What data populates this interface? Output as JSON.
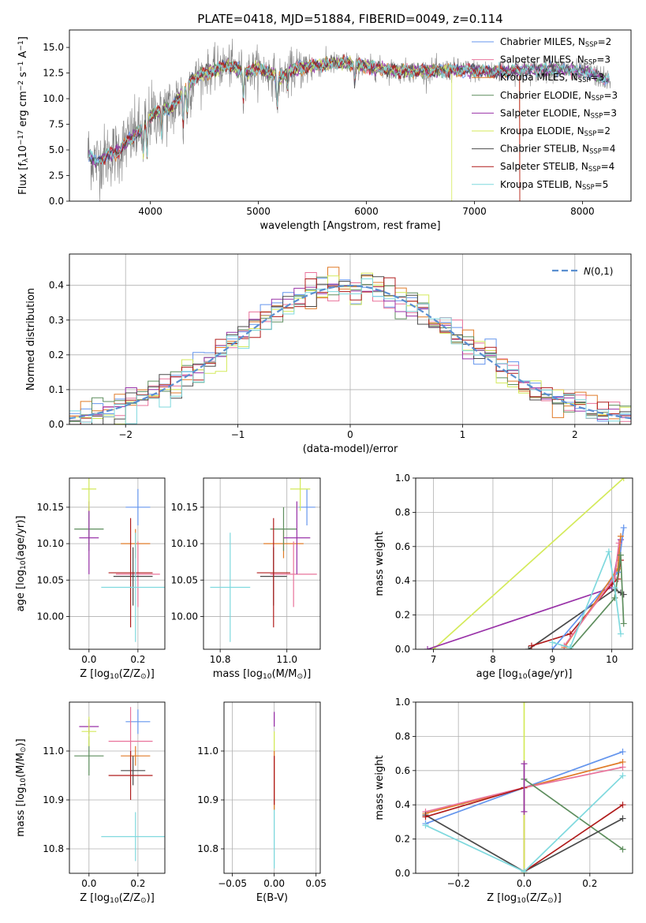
{
  "chart_data": [
    {
      "type": "line",
      "title": "PLATE=0418, MJD=51884, FIBERID=0049, z=0.114",
      "xlabel": "wavelength [Angstrom, rest frame]",
      "ylabel": "Flux [f$_\\lambda$10$^{-17}$ erg cm$^{-2}$ s$^{-1}$ A$^{-1}$]",
      "xlim": [
        3250,
        8450
      ],
      "ylim": [
        0,
        16.7
      ],
      "xticks": [
        4000,
        5000,
        6000,
        7000,
        8000
      ],
      "yticks": [
        0.0,
        2.5,
        5.0,
        7.5,
        10.0,
        12.5,
        15.0
      ],
      "legend_position": "top-right",
      "observed_color": "#808080",
      "continuum_points": [
        [
          3420,
          4.7
        ],
        [
          3500,
          3.8
        ],
        [
          3600,
          4.5
        ],
        [
          3700,
          4.8
        ],
        [
          3800,
          6.0
        ],
        [
          3900,
          6.8
        ],
        [
          4000,
          8.3
        ],
        [
          4100,
          8.9
        ],
        [
          4200,
          9.0
        ],
        [
          4300,
          10.6
        ],
        [
          4400,
          12.0
        ],
        [
          4500,
          12.5
        ],
        [
          4600,
          12.8
        ],
        [
          4700,
          13.3
        ],
        [
          4800,
          12.9
        ],
        [
          4900,
          12.6
        ],
        [
          5000,
          13.0
        ],
        [
          5200,
          12.0
        ],
        [
          5300,
          12.8
        ],
        [
          5500,
          13.2
        ],
        [
          5800,
          13.5
        ],
        [
          6000,
          13.1
        ],
        [
          6300,
          12.7
        ],
        [
          6600,
          12.7
        ],
        [
          6900,
          12.8
        ],
        [
          7200,
          12.6
        ],
        [
          7500,
          12.8
        ],
        [
          7800,
          12.9
        ],
        [
          8100,
          12.4
        ],
        [
          8250,
          11.7
        ]
      ],
      "series": [
        {
          "name": "Chabrier MILES, N$_{SSP}$=2",
          "color": "#6495ED"
        },
        {
          "name": "Salpeter MILES, N$_{SSP}$=3",
          "color": "#E9739B"
        },
        {
          "name": "Kroupa MILES, N$_{SSP}$=3",
          "color": "#E07B28"
        },
        {
          "name": "Chabrier ELODIE, N$_{SSP}$=3",
          "color": "#5E8E5E"
        },
        {
          "name": "Salpeter ELODIE, N$_{SSP}$=3",
          "color": "#9932A8"
        },
        {
          "name": "Kroupa ELODIE, N$_{SSP}$=2",
          "color": "#D4EA5A"
        },
        {
          "name": "Chabrier STELIB, N$_{SSP}$=4",
          "color": "#4A4A4A"
        },
        {
          "name": "Salpeter STELIB, N$_{SSP}$=4",
          "color": "#B01C1C"
        },
        {
          "name": "Kroupa STELIB, N$_{SSP}$=5",
          "color": "#7FD9DE"
        }
      ]
    },
    {
      "type": "histogram",
      "xlabel": "(data-model)/error",
      "ylabel": "Normed distribution",
      "xlim": [
        -2.5,
        2.5
      ],
      "ylim": [
        0,
        0.49
      ],
      "xticks": [
        -2,
        -1,
        0,
        1,
        2
      ],
      "yticks": [
        0.0,
        0.1,
        0.2,
        0.3,
        0.4
      ],
      "grid": true,
      "legend_position": "top-right",
      "reference_curve": {
        "name": "$\\mathcal{N}(0,1)$",
        "color": "#5B8FD0",
        "style": "dashed"
      },
      "bin_width": 0.1
    },
    {
      "type": "scatter",
      "xlabel": "Z [log$_{10}$(Z/Z$_\\odot$)]",
      "ylabel": "age  [log$_{10}$(age/yr)]",
      "xlim": [
        -0.08,
        0.31
      ],
      "ylim": [
        9.955,
        10.19
      ],
      "xticks": [
        0.0,
        0.2
      ],
      "yticks": [
        10.0,
        10.05,
        10.1,
        10.15
      ],
      "grid": true,
      "points": [
        {
          "color": "#6495ED",
          "x": 0.2,
          "y": 10.15,
          "xerr": 0.05,
          "yerr": 0.025
        },
        {
          "color": "#E07B28",
          "x": 0.19,
          "y": 10.1,
          "xerr": 0.06,
          "yerr": 0.02
        },
        {
          "color": "#E9739B",
          "x": 0.2,
          "y": 10.058,
          "xerr": 0.09,
          "yerr": 0.045
        },
        {
          "color": "#5E8E5E",
          "x": 0.0,
          "y": 10.12,
          "xerr": 0.06,
          "yerr": 0.03
        },
        {
          "color": "#9932A8",
          "x": 0.0,
          "y": 10.108,
          "xerr": 0.04,
          "yerr": 0.05
        },
        {
          "color": "#D4EA5A",
          "x": 0.0,
          "y": 10.175,
          "xerr": 0.03,
          "yerr": 0.03
        },
        {
          "color": "#4A4A4A",
          "x": 0.18,
          "y": 10.055,
          "xerr": 0.08,
          "yerr": 0.04
        },
        {
          "color": "#B01C1C",
          "x": 0.17,
          "y": 10.06,
          "xerr": 0.09,
          "yerr": 0.075
        },
        {
          "color": "#7FD9DE",
          "x": 0.19,
          "y": 10.04,
          "xerr": 0.14,
          "yerr": 0.075
        }
      ]
    },
    {
      "type": "scatter",
      "xlabel": "mass [log$_{10}$(M/M$_\\odot$)]",
      "xlim": [
        10.75,
        11.1
      ],
      "ylim": [
        9.955,
        10.19
      ],
      "xticks": [
        10.8,
        11.0
      ],
      "yticks": [
        10.0,
        10.05,
        10.1,
        10.15
      ],
      "grid": true,
      "points": [
        {
          "color": "#6495ED",
          "x": 11.06,
          "y": 10.15,
          "xerr": 0.025,
          "yerr": 0.025
        },
        {
          "color": "#E07B28",
          "x": 10.99,
          "y": 10.1,
          "xerr": 0.06,
          "yerr": 0.02
        },
        {
          "color": "#E9739B",
          "x": 11.02,
          "y": 10.058,
          "xerr": 0.07,
          "yerr": 0.045
        },
        {
          "color": "#5E8E5E",
          "x": 10.99,
          "y": 10.12,
          "xerr": 0.04,
          "yerr": 0.03
        },
        {
          "color": "#9932A8",
          "x": 11.03,
          "y": 10.108,
          "xerr": 0.04,
          "yerr": 0.05
        },
        {
          "color": "#D4EA5A",
          "x": 11.04,
          "y": 10.175,
          "xerr": 0.03,
          "yerr": 0.03
        },
        {
          "color": "#4A4A4A",
          "x": 10.96,
          "y": 10.055,
          "xerr": 0.04,
          "yerr": 0.04
        },
        {
          "color": "#B01C1C",
          "x": 10.96,
          "y": 10.06,
          "xerr": 0.05,
          "yerr": 0.075
        },
        {
          "color": "#7FD9DE",
          "x": 10.83,
          "y": 10.04,
          "xerr": 0.06,
          "yerr": 0.075
        }
      ]
    },
    {
      "type": "line",
      "xlabel": "age  [log$_{10}$(age/yr)]",
      "ylabel": "mass weight",
      "xlim": [
        6.7,
        10.35
      ],
      "ylim": [
        0,
        1.0
      ],
      "xticks": [
        7,
        8,
        9,
        10
      ],
      "yticks": [
        0.0,
        0.2,
        0.4,
        0.6,
        0.8,
        1.0
      ],
      "grid": true,
      "series": [
        {
          "color": "#D4EA5A",
          "points": [
            [
              7.0,
              0.0
            ],
            [
              10.2,
              1.0
            ]
          ]
        },
        {
          "color": "#9932A8",
          "points": [
            [
              6.9,
              0.0
            ],
            [
              10.0,
              0.36
            ],
            [
              10.15,
              0.64
            ]
          ]
        },
        {
          "color": "#4A4A4A",
          "points": [
            [
              8.6,
              0.0
            ],
            [
              10.05,
              0.35
            ],
            [
              10.15,
              0.33
            ],
            [
              10.2,
              0.32
            ]
          ]
        },
        {
          "color": "#B01C1C",
          "points": [
            [
              8.65,
              0.02
            ],
            [
              9.3,
              0.09
            ],
            [
              10.0,
              0.38
            ],
            [
              10.1,
              0.41
            ],
            [
              10.15,
              0.52
            ]
          ]
        },
        {
          "color": "#6495ED",
          "points": [
            [
              9.0,
              0.0
            ],
            [
              10.1,
              0.45
            ],
            [
              10.2,
              0.71
            ]
          ]
        },
        {
          "color": "#E07B28",
          "points": [
            [
              9.2,
              0.01
            ],
            [
              10.1,
              0.47
            ],
            [
              10.15,
              0.66
            ]
          ]
        },
        {
          "color": "#E9739B",
          "points": [
            [
              9.2,
              0.02
            ],
            [
              10.05,
              0.42
            ],
            [
              10.12,
              0.62
            ]
          ]
        },
        {
          "color": "#5E8E5E",
          "points": [
            [
              9.3,
              0.0
            ],
            [
              10.05,
              0.3
            ],
            [
              10.15,
              0.55
            ],
            [
              10.2,
              0.15
            ]
          ]
        },
        {
          "color": "#7FD9DE",
          "points": [
            [
              9.0,
              0.04
            ],
            [
              9.3,
              0.01
            ],
            [
              9.95,
              0.57
            ],
            [
              10.05,
              0.36
            ],
            [
              10.15,
              0.09
            ]
          ]
        }
      ]
    },
    {
      "type": "scatter",
      "xlabel": "Z [log$_{10}$(Z/Z$_\\odot$)]",
      "ylabel": "mass [log$_{10}$(M/M$_\\odot$)]",
      "xlim": [
        -0.08,
        0.31
      ],
      "ylim": [
        10.75,
        11.1
      ],
      "xticks": [
        0.0,
        0.2
      ],
      "yticks": [
        10.8,
        10.9,
        11.0
      ],
      "grid": true,
      "points": [
        {
          "color": "#6495ED",
          "x": 0.2,
          "y": 11.06,
          "xerr": 0.05,
          "yerr": 0.025
        },
        {
          "color": "#E07B28",
          "x": 0.19,
          "y": 10.99,
          "xerr": 0.06,
          "yerr": 0.02
        },
        {
          "color": "#E9739B",
          "x": 0.17,
          "y": 11.02,
          "xerr": 0.09,
          "yerr": 0.07
        },
        {
          "color": "#5E8E5E",
          "x": 0.0,
          "y": 10.99,
          "xerr": 0.06,
          "yerr": 0.04
        },
        {
          "color": "#9932A8",
          "x": 0.0,
          "y": 11.05,
          "xerr": 0.04,
          "yerr": 0.015
        },
        {
          "color": "#D4EA5A",
          "x": 0.0,
          "y": 11.04,
          "xerr": 0.03,
          "yerr": 0.03
        },
        {
          "color": "#4A4A4A",
          "x": 0.18,
          "y": 10.96,
          "xerr": 0.05,
          "yerr": 0.03
        },
        {
          "color": "#B01C1C",
          "x": 0.17,
          "y": 10.95,
          "xerr": 0.09,
          "yerr": 0.05
        },
        {
          "color": "#7FD9DE",
          "x": 0.19,
          "y": 10.825,
          "xerr": 0.14,
          "yerr": 0.05
        }
      ]
    },
    {
      "type": "scatter",
      "xlabel": "E(B-V)",
      "xlim": [
        -0.06,
        0.055
      ],
      "ylim": [
        10.75,
        11.1
      ],
      "xticks": [
        -0.05,
        0.0,
        0.05
      ],
      "yticks": [
        10.8,
        10.9,
        11.0
      ],
      "grid": true,
      "segments": [
        {
          "color": "#7FD9DE",
          "x": 0.0,
          "y1": 10.76,
          "y2": 10.89
        },
        {
          "color": "#E07B28",
          "x": 0.0,
          "y1": 10.88,
          "y2": 11.0
        },
        {
          "color": "#B01C1C",
          "x": 0.0,
          "y1": 10.89,
          "y2": 10.99
        },
        {
          "color": "#D4EA5A",
          "x": 0.0,
          "y1": 11.0,
          "y2": 11.04
        },
        {
          "color": "#9932A8",
          "x": 0.0,
          "y1": 11.05,
          "y2": 11.08
        }
      ]
    },
    {
      "type": "line",
      "xlabel": "Z [log$_{10}$(Z/Z$_\\odot$)]",
      "ylabel": "mass weight",
      "xlim": [
        -0.33,
        0.33
      ],
      "ylim": [
        0,
        1.0
      ],
      "xticks": [
        -0.2,
        0.0,
        0.2
      ],
      "yticks": [
        0.0,
        0.2,
        0.4,
        0.6,
        0.8,
        1.0
      ],
      "grid": true,
      "series": [
        {
          "color": "#6495ED",
          "points": [
            [
              -0.3,
              0.29
            ],
            [
              0.3,
              0.71
            ]
          ]
        },
        {
          "color": "#E07B28",
          "points": [
            [
              -0.3,
              0.35
            ],
            [
              0.0,
              0.5
            ],
            [
              0.3,
              0.65
            ]
          ]
        },
        {
          "color": "#E9739B",
          "points": [
            [
              -0.3,
              0.36
            ],
            [
              0.0,
              0.5
            ],
            [
              0.3,
              0.62
            ]
          ]
        },
        {
          "color": "#5E8E5E",
          "points": [
            [
              0.0,
              0.55
            ],
            [
              0.3,
              0.14
            ]
          ]
        },
        {
          "color": "#4A4A4A",
          "points": [
            [
              -0.3,
              0.34
            ],
            [
              0.0,
              0.01
            ],
            [
              0.3,
              0.32
            ]
          ]
        },
        {
          "color": "#B01C1C",
          "points": [
            [
              -0.3,
              0.33
            ],
            [
              0.0,
              0.5
            ],
            [
              0.0,
              0.01
            ],
            [
              0.3,
              0.4
            ]
          ]
        },
        {
          "color": "#D4EA5A",
          "points": [
            [
              0.0,
              1.0
            ],
            [
              0.0,
              0.0
            ]
          ]
        },
        {
          "color": "#9932A8",
          "points": [
            [
              0.0,
              0.64
            ],
            [
              0.0,
              0.36
            ]
          ]
        },
        {
          "color": "#7FD9DE",
          "points": [
            [
              -0.3,
              0.28
            ],
            [
              0.0,
              0.01
            ],
            [
              0.3,
              0.57
            ]
          ]
        }
      ]
    }
  ]
}
